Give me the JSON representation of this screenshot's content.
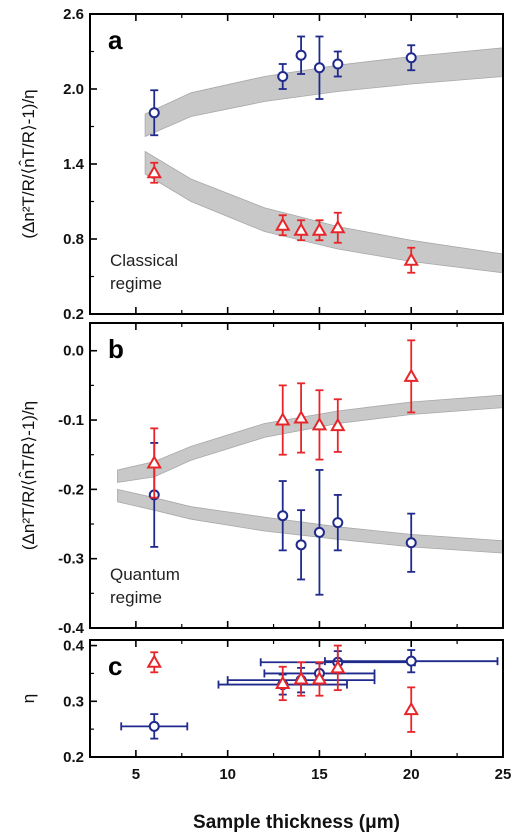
{
  "chart_data": {
    "xlabel": "Sample thickness (μm)",
    "xticks": [
      5,
      10,
      15,
      20,
      25
    ],
    "xlim": [
      2.5,
      25
    ],
    "colors": {
      "blue": "#1f2a8c",
      "red": "#e8262a",
      "band": "#c8c8c8"
    },
    "panels": [
      {
        "label": "a",
        "type": "scatter",
        "ylabel": "(Δn²T/R/⟨n̂T/R⟩-1)/η",
        "ylim": [
          0.2,
          2.6
        ],
        "yticks": [
          "0.2",
          "0.8",
          "1.4",
          "2.0",
          "2.6"
        ],
        "annotation": [
          "Classical",
          "regime"
        ],
        "bands": [
          {
            "x": [
              5.5,
              8,
              12,
              16,
              20,
              25
            ],
            "lower": [
              1.62,
              1.78,
              1.9,
              1.98,
              2.04,
              2.1
            ],
            "upper": [
              1.8,
              1.97,
              2.1,
              2.19,
              2.26,
              2.33
            ]
          },
          {
            "x": [
              5.5,
              8,
              12,
              16,
              20,
              25
            ],
            "lower": [
              1.32,
              1.1,
              0.86,
              0.72,
              0.62,
              0.53
            ],
            "upper": [
              1.5,
              1.28,
              1.05,
              0.9,
              0.79,
              0.68
            ]
          }
        ],
        "series": [
          {
            "marker": "circle",
            "color": "blue",
            "x": [
              6,
              13,
              14,
              15,
              16,
              20
            ],
            "y": [
              1.81,
              2.1,
              2.27,
              2.17,
              2.2,
              2.25
            ],
            "err": [
              0.18,
              0.1,
              0.15,
              0.25,
              0.1,
              0.1
            ]
          },
          {
            "marker": "triangle",
            "color": "red",
            "x": [
              6,
              13,
              14,
              15,
              16,
              20
            ],
            "y": [
              1.33,
              0.91,
              0.87,
              0.87,
              0.89,
              0.63
            ],
            "err": [
              0.08,
              0.08,
              0.08,
              0.08,
              0.12,
              0.1
            ]
          }
        ]
      },
      {
        "label": "b",
        "type": "scatter",
        "ylabel": "(Δn²T/R/⟨n̂T/R⟩-1)/η",
        "ylim": [
          -0.4,
          0.04
        ],
        "yticks": [
          "-0.4",
          "-0.3",
          "-0.2",
          "-0.1",
          "0.0"
        ],
        "annotation": [
          "Quantum",
          "regime"
        ],
        "bands": [
          {
            "x": [
              4,
              6,
              8,
              12,
              16,
              20,
              25
            ],
            "lower": [
              -0.19,
              -0.182,
              -0.158,
              -0.125,
              -0.105,
              -0.092,
              -0.082
            ],
            "upper": [
              -0.172,
              -0.16,
              -0.138,
              -0.105,
              -0.087,
              -0.074,
              -0.064
            ]
          },
          {
            "x": [
              4,
              6,
              8,
              12,
              16,
              20,
              25
            ],
            "lower": [
              -0.218,
              -0.23,
              -0.243,
              -0.26,
              -0.272,
              -0.283,
              -0.292
            ],
            "upper": [
              -0.2,
              -0.212,
              -0.225,
              -0.24,
              -0.254,
              -0.265,
              -0.274
            ]
          }
        ],
        "series": [
          {
            "marker": "circle",
            "color": "blue",
            "x": [
              6,
              13,
              14,
              15,
              16,
              20
            ],
            "y": [
              -0.208,
              -0.238,
              -0.28,
              -0.262,
              -0.248,
              -0.277
            ],
            "err": [
              0.075,
              0.05,
              0.05,
              0.09,
              0.04,
              0.042
            ]
          },
          {
            "marker": "triangle",
            "color": "red",
            "x": [
              6,
              13,
              14,
              15,
              16,
              20
            ],
            "y": [
              -0.162,
              -0.1,
              -0.097,
              -0.107,
              -0.108,
              -0.037
            ],
            "err": [
              0.05,
              0.05,
              0.05,
              0.05,
              0.038,
              0.052
            ]
          }
        ]
      },
      {
        "label": "c",
        "type": "scatter",
        "ylabel": "η",
        "ylim": [
          0.2,
          0.41
        ],
        "yticks": [
          "0.2",
          "0.3",
          "0.4"
        ],
        "annotation": [],
        "bands": [],
        "series": [
          {
            "marker": "circle",
            "color": "blue",
            "x": [
              6,
              13,
              14,
              15,
              16,
              20
            ],
            "y": [
              0.255,
              0.33,
              0.338,
              0.35,
              0.37,
              0.372
            ],
            "err": [
              0.022,
              0.018,
              0.022,
              0.018,
              0.02,
              0.02
            ],
            "xerr": [
              1.8,
              3.5,
              4,
              3,
              4.2,
              4.7
            ]
          },
          {
            "marker": "triangle",
            "color": "red",
            "x": [
              6,
              13,
              14,
              15,
              16,
              20
            ],
            "y": [
              0.37,
              0.332,
              0.34,
              0.34,
              0.36,
              0.285
            ],
            "err": [
              0.018,
              0.03,
              0.03,
              0.03,
              0.04,
              0.04
            ]
          }
        ]
      }
    ]
  }
}
